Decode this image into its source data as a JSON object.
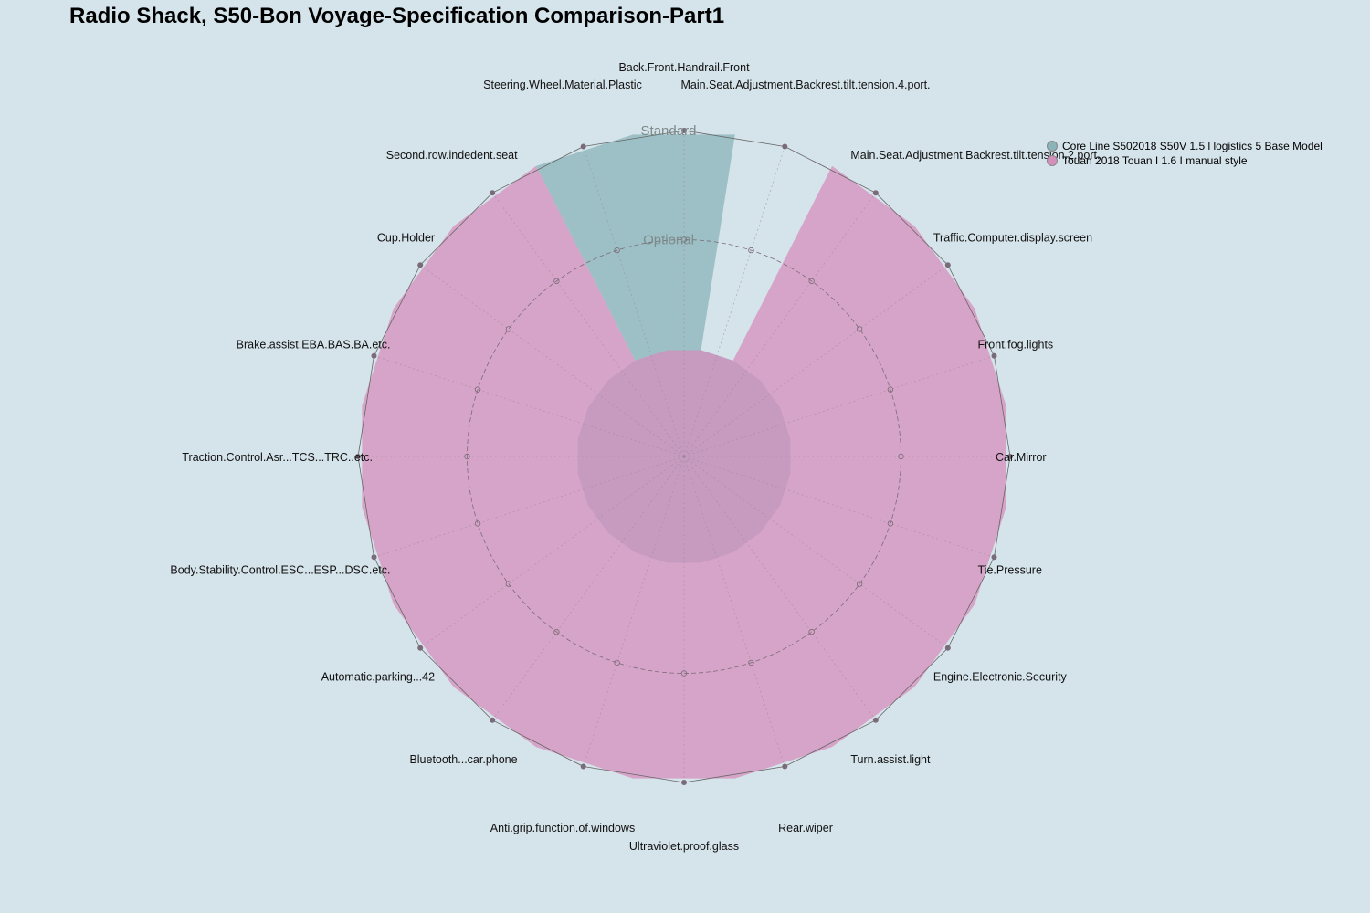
{
  "chart_data": {
    "type": "radar",
    "title": "Radio Shack, S50-Bon Voyage-Specification Comparison-Part1",
    "scale_levels": [
      "Optional",
      "Standard"
    ],
    "level_values": {
      "Optional": 1,
      "Standard": 2
    },
    "axis_range": [
      0,
      2
    ],
    "grid": true,
    "legend_position": "top-right",
    "categories": [
      "Back.Front.Handrail.Front",
      "Main.Seat.Adjustment.Backrest.tilt.tension.4.port.",
      "Main.Seat.Adjustment.Backrest.tilt.tension.2.port.",
      "Traffic.Computer.display.screen",
      "Front.fog.lights",
      "Car.Mirror",
      "Tie.Pressure",
      "Engine.Electronic.Security",
      "Turn.assist.light",
      "Rear.wiper",
      "Ultraviolet.proof.glass",
      "Anti.grip.function.of.windows",
      "Bluetooth...car.phone",
      "Automatic.parking...42",
      "Body.Stability.Control.ESC...ESP...DSC.etc.",
      "Traction.Control.Asr...TCS...TRC..etc.",
      "Brake.assist.EBA.BAS.BA.etc.",
      "Cup.Holder",
      "Second.row.indedent.seat",
      "Steering.Wheel.Material.Plastic"
    ],
    "series": [
      {
        "name": "Core Line S502018 S50V 1.5 l logistics 5 Base Model",
        "color": "#8ab4ba",
        "values": [
          2,
          0,
          0,
          0,
          0,
          0,
          0,
          0,
          0,
          0,
          0,
          0,
          0,
          0,
          0,
          0,
          0,
          0,
          0,
          2
        ]
      },
      {
        "name": "Touan 2018 Touan I 1.6 I manual style",
        "color": "#d58fbc",
        "values": [
          0,
          0,
          2,
          2,
          2,
          2,
          2,
          2,
          2,
          2,
          2,
          2,
          2,
          2,
          2,
          2,
          2,
          2,
          2,
          0
        ]
      }
    ]
  }
}
